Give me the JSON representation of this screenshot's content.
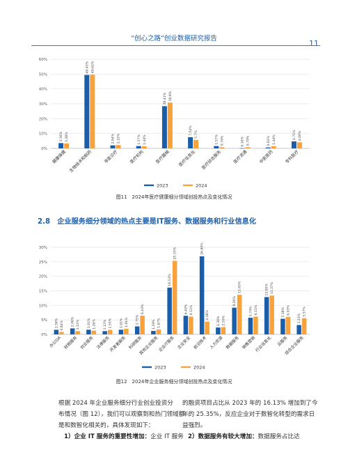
{
  "header": {
    "title": "“创心之路”创业数据研究报告",
    "page_number": "11"
  },
  "legend": {
    "y2023": "2023",
    "y2024": "2024"
  },
  "colors": {
    "y2023": "#1a5ea9",
    "y2024": "#f7a23c",
    "heading": "#1d5fa8"
  },
  "figure11": {
    "caption": "图11　2024年医疗健康细分领域创投热点及变化情况"
  },
  "section": {
    "title": "2.8　企业服务细分领域的热点主要是IT服务、数据服务和行业信息化"
  },
  "figure12": {
    "caption": "图12　2024年企业服务细分领域创投热点及变化情况"
  },
  "text": {
    "left_line1": "根据 2024 年企业服务细分行业创业投资分",
    "left_line2": "布情况（图 12），我们可以观察到和热门领域都",
    "left_line3": "是和数智化相关的，具体发现如下：",
    "left_point_title": "1）企业 IT 服务的重要性增加：",
    "left_point_body": "企业 IT 服务",
    "right_line1": "的融资项目占比从 2023 年的 16.13% 增加到了今",
    "right_line2": "年的 25.35%，反应企业对于数智化转型的需求日",
    "right_line3": "益强烈。",
    "right_point_title": "2）数据服务有较大增加：",
    "right_point_body": "数据服务占比达"
  },
  "chart_data": [
    {
      "type": "bar",
      "ylim": [
        0,
        60
      ],
      "yticks": [
        "0%",
        "10%",
        "20%",
        "30%",
        "40%",
        "50%",
        "60%"
      ],
      "categories": [
        "健康保健",
        "生物技术和制药",
        "寻医诊疗",
        "医疗机构",
        "医疗器械",
        "医疗信息化",
        "医疗综合服务",
        "医疗流通",
        "中医医药",
        "专科医疗"
      ],
      "series": [
        {
          "name": "2023",
          "values": [
            3.56,
            49.45,
            2.04,
            1.57,
            28.41,
            7.54,
            1.57,
            0.16,
            0.63,
            4.71
          ],
          "labels": [
            "3.56%",
            "49.45%",
            "2.04%",
            "1.57%",
            "28.41%",
            "7.54%",
            "1.57%",
            "0.16%",
            "0.63%",
            "4.71%"
          ]
        },
        {
          "name": "2024",
          "values": [
            3.28,
            49.61,
            2.22,
            1.44,
            30.8,
            5.7,
            0.79,
            0.79,
            1.44,
            4.06
          ],
          "labels": [
            "3.28%",
            "49.61%",
            "2.22%",
            "1.44%",
            "30.8%",
            "5.7%",
            "0.79%",
            "0.79%",
            "1.44%",
            "4.06%"
          ]
        }
      ]
    },
    {
      "type": "bar",
      "ylim": [
        0,
        30
      ],
      "yticks": [
        "0%",
        "5%",
        "10%",
        "15%",
        "20%",
        "25%",
        "30%"
      ],
      "categories": [
        "办公OA",
        "财税服务",
        "创业服务",
        "法律服务",
        "开发者服务",
        "科研服务",
        "其他企业服务",
        "企业IT服务",
        "企业安全",
        "前沿技术",
        "人力资源",
        "数据服务",
        "销售营销",
        "行业信息化",
        "云服务",
        "综合企业服务"
      ],
      "series": [
        {
          "name": "2023",
          "values": [
            1.58,
            2.06,
            1.61,
            1.12,
            1.61,
            2.75,
            1.19,
            16.13,
            6.4,
            26.9,
            2.36,
            9.2,
            5.74,
            12.85,
            5.38,
            3.23
          ],
          "labels": [
            "1.58%",
            "2.06%",
            "1.61%",
            "1.12%",
            "1.61%",
            "2.75%",
            "1.19%",
            "16.13%",
            "6.40%",
            "26.90%",
            "2.36%",
            "9.20%",
            "5.74%",
            "12.85%",
            "5.38%",
            "3.23%"
          ]
        },
        {
          "name": "2024",
          "values": [
            0.84,
            1.12,
            1.26,
            1.55,
            1.91,
            6.43,
            1.67,
            25.35,
            6.11,
            4.38,
            2.5,
            13.65,
            6.11,
            13.37,
            6.03,
            5.57
          ],
          "labels": [
            "0.84%",
            "1.12%",
            "1.26%",
            "1.55%",
            "1.91%",
            "6.43%",
            "1.67%",
            "25.35%",
            "6.11%",
            "4.38%",
            "2.50%",
            "13.65%",
            "6.11%",
            "13.37%",
            "6.03%",
            "5.57%"
          ]
        }
      ]
    }
  ]
}
